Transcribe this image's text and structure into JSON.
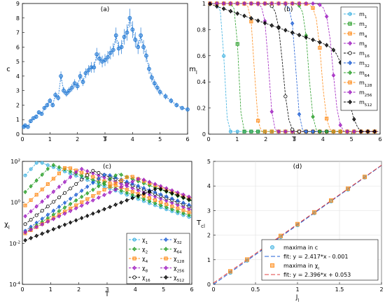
{
  "chart_data": [
    {
      "panel": "(a)",
      "type": "line",
      "xlabel": "T",
      "ylabel": "c",
      "xlim": [
        0,
        6
      ],
      "ylim": [
        0,
        9
      ],
      "xticks": [
        "0",
        "1",
        "2",
        "3",
        "4",
        "5",
        "6"
      ],
      "yticks": [
        "0",
        "1",
        "2",
        "3",
        "4",
        "5",
        "6",
        "7",
        "8",
        "9"
      ],
      "series": [
        {
          "color": "#1f77d4",
          "points": [
            [
              0.05,
              0.5
            ],
            [
              0.1,
              0.6
            ],
            [
              0.2,
              0.5
            ],
            [
              0.3,
              0.9
            ],
            [
              0.4,
              1.1
            ],
            [
              0.5,
              1.2
            ],
            [
              0.6,
              1.5
            ],
            [
              0.7,
              1.4
            ],
            [
              0.8,
              1.8
            ],
            [
              0.9,
              2.0
            ],
            [
              1.0,
              2.3
            ],
            [
              1.1,
              2.0
            ],
            [
              1.2,
              2.7
            ],
            [
              1.3,
              2.5
            ],
            [
              1.4,
              4.0
            ],
            [
              1.5,
              3.0
            ],
            [
              1.6,
              2.8
            ],
            [
              1.7,
              3.0
            ],
            [
              1.8,
              3.2
            ],
            [
              1.9,
              3.5
            ],
            [
              2.0,
              3.3
            ],
            [
              2.1,
              4.0
            ],
            [
              2.2,
              3.6
            ],
            [
              2.3,
              4.2
            ],
            [
              2.4,
              4.4
            ],
            [
              2.5,
              4.6
            ],
            [
              2.6,
              4.6
            ],
            [
              2.7,
              5.5
            ],
            [
              2.8,
              5.2
            ],
            [
              2.9,
              5.0
            ],
            [
              3.0,
              5.1
            ],
            [
              3.1,
              5.3
            ],
            [
              3.2,
              5.6
            ],
            [
              3.3,
              5.8
            ],
            [
              3.4,
              6.8
            ],
            [
              3.5,
              5.9
            ],
            [
              3.6,
              6.0
            ],
            [
              3.7,
              6.7
            ],
            [
              3.8,
              7.0
            ],
            [
              3.9,
              8.0
            ],
            [
              4.0,
              7.2
            ],
            [
              4.1,
              6.5
            ],
            [
              4.2,
              6.0
            ],
            [
              4.3,
              6.8
            ],
            [
              4.4,
              6.0
            ],
            [
              4.5,
              5.4
            ],
            [
              4.6,
              4.5
            ],
            [
              4.7,
              3.9
            ],
            [
              4.8,
              3.5
            ],
            [
              4.9,
              3.2
            ],
            [
              5.0,
              2.9
            ],
            [
              5.2,
              2.6
            ],
            [
              5.4,
              2.3
            ],
            [
              5.6,
              2.0
            ],
            [
              5.8,
              1.8
            ],
            [
              6.0,
              1.7
            ]
          ]
        }
      ]
    },
    {
      "panel": "(b)",
      "type": "line",
      "xlabel": "T",
      "ylabel": "m",
      "ylabel_sub": "l",
      "xlim": [
        0,
        6
      ],
      "ylim": [
        0,
        1
      ],
      "xticks": [
        "0",
        "1",
        "2",
        "3",
        "4",
        "5",
        "6"
      ],
      "yticks": [
        "0",
        "0.2",
        "0.4",
        "0.6",
        "0.8",
        "1"
      ],
      "legend_position": "right",
      "series": [
        {
          "name": "m",
          "sub": "1",
          "color": "#3ab0e0",
          "marker": "circle",
          "tc": 0.55,
          "w": 0.05
        },
        {
          "name": "m",
          "sub": "2",
          "color": "#2ca02c",
          "marker": "square",
          "tc": 1.05,
          "w": 0.05
        },
        {
          "name": "m",
          "sub": "4",
          "color": "#ff8c1a",
          "marker": "square",
          "tc": 1.6,
          "w": 0.06
        },
        {
          "name": "m",
          "sub": "8",
          "color": "#a020c0",
          "marker": "diamond",
          "tc": 2.1,
          "w": 0.07
        },
        {
          "name": "m",
          "sub": "16",
          "color": "#000000",
          "marker": "circle",
          "tc": 2.6,
          "w": 0.1
        },
        {
          "name": "m",
          "sub": "32",
          "color": "#1f5fd4",
          "marker": "diamond",
          "tc": 3.05,
          "w": 0.07
        },
        {
          "name": "m",
          "sub": "64",
          "color": "#2ca02c",
          "marker": "diamond",
          "tc": 3.5,
          "w": 0.08
        },
        {
          "name": "m",
          "sub": "128",
          "color": "#ff8c1a",
          "marker": "square",
          "tc": 3.95,
          "w": 0.09
        },
        {
          "name": "m",
          "sub": "256",
          "color": "#a020c0",
          "marker": "diamond",
          "tc": 4.35,
          "w": 0.1
        },
        {
          "name": "m",
          "sub": "512",
          "color": "#000000",
          "marker": "diamond",
          "tc": 4.85,
          "w": 0.2
        }
      ]
    },
    {
      "panel": "(c)",
      "type": "line",
      "xlabel": "T",
      "ylabel": "χ",
      "ylabel_sub": "l",
      "yscale": "log",
      "xlim": [
        0,
        6
      ],
      "ylim_exp": [
        -4,
        2
      ],
      "xticks": [
        "0",
        "1",
        "2",
        "3",
        "4",
        "5",
        "6"
      ],
      "yticks_exp": [
        "-4",
        "-2",
        "0",
        "2"
      ],
      "legend_position": "bottom-right",
      "series": [
        {
          "name": "χ",
          "sub": "1",
          "color": "#3ab0e0",
          "marker": "circle",
          "tc": 0.55,
          "peak": 100
        },
        {
          "name": "χ",
          "sub": "2",
          "color": "#2ca02c",
          "marker": "diamond",
          "tc": 1.05,
          "peak": 70
        },
        {
          "name": "χ",
          "sub": "4",
          "color": "#ff8c1a",
          "marker": "square",
          "tc": 1.55,
          "peak": 55
        },
        {
          "name": "χ",
          "sub": "8",
          "color": "#a020c0",
          "marker": "diamond",
          "tc": 2.05,
          "peak": 45
        },
        {
          "name": "χ",
          "sub": "16",
          "color": "#000000",
          "marker": "circle",
          "tc": 2.5,
          "peak": 35
        },
        {
          "name": "χ",
          "sub": "32",
          "color": "#1f5fd4",
          "marker": "diamond",
          "tc": 2.95,
          "peak": 25
        },
        {
          "name": "χ",
          "sub": "64",
          "color": "#2ca02c",
          "marker": "diamond",
          "tc": 3.4,
          "peak": 25
        },
        {
          "name": "χ",
          "sub": "128",
          "color": "#ff8c1a",
          "marker": "square",
          "tc": 3.8,
          "peak": 20
        },
        {
          "name": "χ",
          "sub": "256",
          "color": "#a020c0",
          "marker": "diamond",
          "tc": 4.15,
          "peak": 15
        },
        {
          "name": "χ",
          "sub": "512",
          "color": "#000000",
          "marker": "diamond",
          "tc": 4.8,
          "peak": 5
        }
      ]
    },
    {
      "panel": "(d)",
      "type": "scatter",
      "xlabel": "J",
      "xlabel_sub": "l",
      "ylabel": "T",
      "ylabel_sub": "cl",
      "xlim": [
        0,
        2
      ],
      "ylim": [
        0,
        5
      ],
      "xticks": [
        "0",
        "0.5",
        "1",
        "1.5",
        "2"
      ],
      "yticks": [
        "0",
        "1",
        "2",
        "3",
        "4",
        "5"
      ],
      "grid": true,
      "legend_position": "bottom-right",
      "series": [
        {
          "name": "maxima in c",
          "color": "#3ab0e0",
          "marker": "circle",
          "x": [
            0.2,
            0.4,
            0.6,
            0.8,
            1.0,
            1.2,
            1.4,
            1.6,
            1.8
          ],
          "y": [
            0.48,
            0.97,
            1.45,
            1.93,
            2.41,
            2.9,
            3.38,
            3.86,
            4.35
          ]
        },
        {
          "name": "maxima in χ",
          "name_sub": "l",
          "color": "#ff8c1a",
          "marker": "square",
          "x": [
            0.2,
            0.4,
            0.6,
            0.8,
            1.0,
            1.2,
            1.4,
            1.6,
            1.8
          ],
          "y": [
            0.53,
            1.01,
            1.49,
            1.97,
            2.45,
            2.93,
            3.41,
            3.89,
            4.37
          ]
        }
      ],
      "fits": [
        {
          "label": "fit: y = 2.417*x - 0.001",
          "color": "#1f5fd4",
          "slope": 2.417,
          "intercept": -0.001
        },
        {
          "label": "fit: y = 2.396*x + 0.053",
          "color": "#e04040",
          "slope": 2.396,
          "intercept": 0.053
        }
      ]
    }
  ]
}
